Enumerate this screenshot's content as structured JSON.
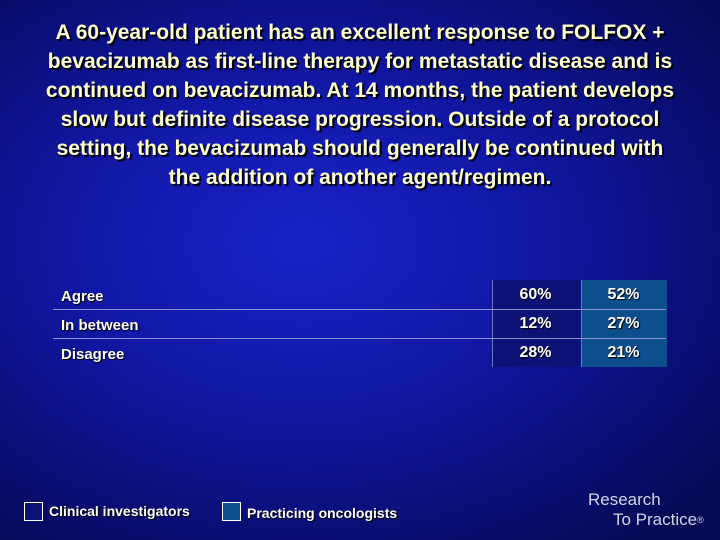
{
  "question": "A 60-year-old patient has an excellent response to FOLFOX + bevacizumab as first-line therapy for metastatic disease and is continued on bevacizumab. At 14 months, the patient develops slow but definite disease progression. Outside of a protocol setting, the bevacizumab should generally be continued with the addition of another agent/regimen.",
  "chart_data": {
    "type": "table",
    "categories": [
      "Agree",
      "In between",
      "Disagree"
    ],
    "series": [
      {
        "name": "Clinical investigators",
        "values": [
          "60%",
          "12%",
          "28%"
        ],
        "color": "#0c1276"
      },
      {
        "name": "Practicing oncologists",
        "values": [
          "52%",
          "27%",
          "21%"
        ],
        "color": "#0d4f8c"
      }
    ]
  },
  "legend": {
    "items": [
      {
        "label": "Clinical investigators",
        "color": "#0c1276"
      },
      {
        "label": "Practicing oncologists",
        "color": "#0d4f8c"
      }
    ]
  },
  "logo": {
    "line1": "Research",
    "line2": "To Practice",
    "mark": "®"
  }
}
